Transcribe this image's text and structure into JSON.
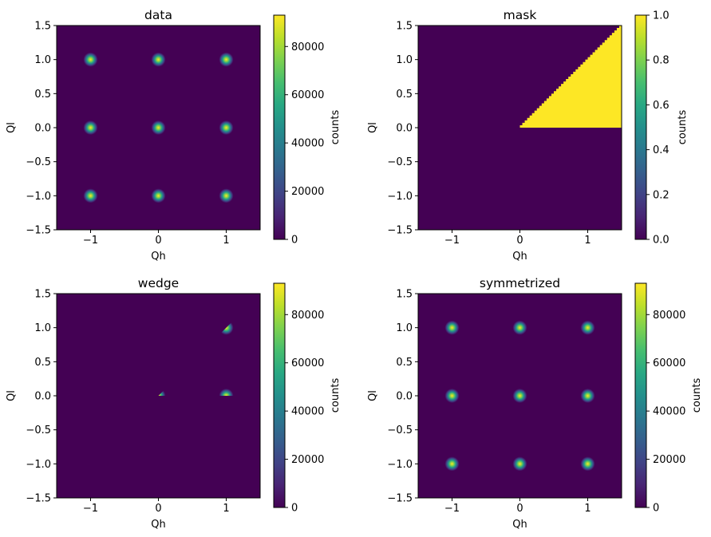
{
  "chart_data": [
    {
      "type": "heatmap",
      "title": "data",
      "xlabel": "Qh",
      "ylabel": "Ql",
      "xlim": [
        -1.5,
        1.5
      ],
      "ylim": [
        -1.5,
        1.5
      ],
      "x_ticks": [
        -1,
        0,
        1
      ],
      "y_ticks": [
        -1.5,
        -1.0,
        -0.5,
        0.0,
        0.5,
        1.0,
        1.5
      ],
      "colorbar": {
        "label": "counts",
        "min": 0,
        "max": 93000,
        "ticks": [
          0,
          20000,
          40000,
          60000,
          80000
        ]
      },
      "peaks": [
        {
          "x": -1,
          "y": 1,
          "value": 93000
        },
        {
          "x": 0,
          "y": 1,
          "value": 93000
        },
        {
          "x": 1,
          "y": 1,
          "value": 93000
        },
        {
          "x": -1,
          "y": 0,
          "value": 93000
        },
        {
          "x": 0,
          "y": 0,
          "value": 93000
        },
        {
          "x": 1,
          "y": 0,
          "value": 93000
        },
        {
          "x": -1,
          "y": -1,
          "value": 93000
        },
        {
          "x": 0,
          "y": -1,
          "value": 93000
        },
        {
          "x": 1,
          "y": -1,
          "value": 93000
        }
      ],
      "region": "none"
    },
    {
      "type": "heatmap",
      "title": "mask",
      "xlabel": "Qh",
      "ylabel": "Ql",
      "xlim": [
        -1.5,
        1.5
      ],
      "ylim": [
        -1.5,
        1.5
      ],
      "x_ticks": [
        -1,
        0,
        1
      ],
      "y_ticks": [
        -1.5,
        -1.0,
        -0.5,
        0.0,
        0.5,
        1.0,
        1.5
      ],
      "colorbar": {
        "label": "counts",
        "min": 0,
        "max": 1.0,
        "ticks": [
          0.0,
          0.2,
          0.4,
          0.6,
          0.8,
          1.0
        ]
      },
      "peaks": [],
      "region": "wedge",
      "region_value": 1.0
    },
    {
      "type": "heatmap",
      "title": "wedge",
      "xlabel": "Qh",
      "ylabel": "Ql",
      "xlim": [
        -1.5,
        1.5
      ],
      "ylim": [
        -1.5,
        1.5
      ],
      "x_ticks": [
        -1,
        0,
        1
      ],
      "y_ticks": [
        -1.5,
        -1.0,
        -0.5,
        0.0,
        0.5,
        1.0,
        1.5
      ],
      "colorbar": {
        "label": "counts",
        "min": 0,
        "max": 93000,
        "ticks": [
          0,
          20000,
          40000,
          60000,
          80000
        ]
      },
      "peaks": [
        {
          "x": 0,
          "y": 0,
          "value": 93000
        },
        {
          "x": 1,
          "y": 0,
          "value": 93000
        },
        {
          "x": 1,
          "y": 1,
          "value": 93000
        }
      ],
      "region": "clip-wedge"
    },
    {
      "type": "heatmap",
      "title": "symmetrized",
      "xlabel": "Qh",
      "ylabel": "Ql",
      "xlim": [
        -1.5,
        1.5
      ],
      "ylim": [
        -1.5,
        1.5
      ],
      "x_ticks": [
        -1,
        0,
        1
      ],
      "y_ticks": [
        -1.5,
        -1.0,
        -0.5,
        0.0,
        0.5,
        1.0,
        1.5
      ],
      "colorbar": {
        "label": "counts",
        "min": 0,
        "max": 93000,
        "ticks": [
          0,
          20000,
          40000,
          60000,
          80000
        ]
      },
      "peaks": [
        {
          "x": -1,
          "y": 1,
          "value": 93000
        },
        {
          "x": 0,
          "y": 1,
          "value": 93000
        },
        {
          "x": 1,
          "y": 1,
          "value": 93000
        },
        {
          "x": -1,
          "y": 0,
          "value": 93000
        },
        {
          "x": 0,
          "y": 0,
          "value": 93000
        },
        {
          "x": 1,
          "y": 0,
          "value": 93000
        },
        {
          "x": -1,
          "y": -1,
          "value": 93000
        },
        {
          "x": 0,
          "y": -1,
          "value": 93000
        },
        {
          "x": 1,
          "y": -1,
          "value": 93000
        }
      ],
      "region": "none"
    }
  ],
  "colormap": "viridis"
}
